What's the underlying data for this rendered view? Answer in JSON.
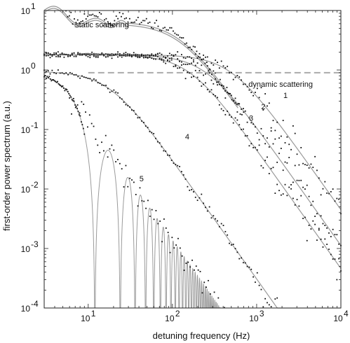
{
  "chart_data": {
    "type": "scatter",
    "xlabel": "detuning frequency (Hz)",
    "ylabel": "first-order power spectrum (a.u.)",
    "xscale": "log",
    "yscale": "log",
    "xlim": [
      3,
      10000
    ],
    "ylim": [
      0.0001,
      10
    ],
    "x_ticks": [
      {
        "value": 10,
        "base": "10",
        "exp": "1"
      },
      {
        "value": 100,
        "base": "10",
        "exp": "2"
      },
      {
        "value": 1000,
        "base": "10",
        "exp": "3"
      },
      {
        "value": 10000,
        "base": "10",
        "exp": "4"
      }
    ],
    "y_ticks": [
      {
        "value": 0.0001,
        "base": "10",
        "exp": "-4"
      },
      {
        "value": 0.001,
        "base": "10",
        "exp": "-3"
      },
      {
        "value": 0.01,
        "base": "10",
        "exp": "-2"
      },
      {
        "value": 0.1,
        "base": "10",
        "exp": "-1"
      },
      {
        "value": 1,
        "base": "10",
        "exp": "0"
      },
      {
        "value": 10,
        "base": "10",
        "exp": "1"
      }
    ],
    "grid": false,
    "legend": "none",
    "annotations": [
      {
        "text": "static scattering",
        "x": 7,
        "y": 5.2
      },
      {
        "text": "dynamic scattering",
        "x": 800,
        "y": 0.52
      }
    ],
    "dashed_line": {
      "y": 0.9,
      "x_range": [
        10,
        10000
      ],
      "color": "#aaaaaa"
    },
    "series": [
      {
        "label": "1",
        "label_x": 2200,
        "label_y": 0.34,
        "plateau": 1.8,
        "corner": 500,
        "n": 2.0
      },
      {
        "label": "2",
        "label_x": 1200,
        "label_y": 0.22,
        "plateau": 1.8,
        "corner": 250,
        "n": 2.0
      },
      {
        "label": "3",
        "label_x": 860,
        "label_y": 0.14,
        "plateau": 1.8,
        "corner": 160,
        "n": 2.0
      },
      {
        "label": "4",
        "label_x": 150,
        "label_y": 0.068,
        "plateau": 0.95,
        "corner": 18,
        "n": 2.0
      },
      {
        "label": "5",
        "label_x": 43,
        "label_y": 0.0135,
        "type": "sinc",
        "plateau": 0.95,
        "first_zero": 12
      }
    ],
    "colors": {
      "model_curve": "#9a9a9a",
      "data_points": "#111111",
      "dashed_line": "#aaaaaa"
    }
  }
}
